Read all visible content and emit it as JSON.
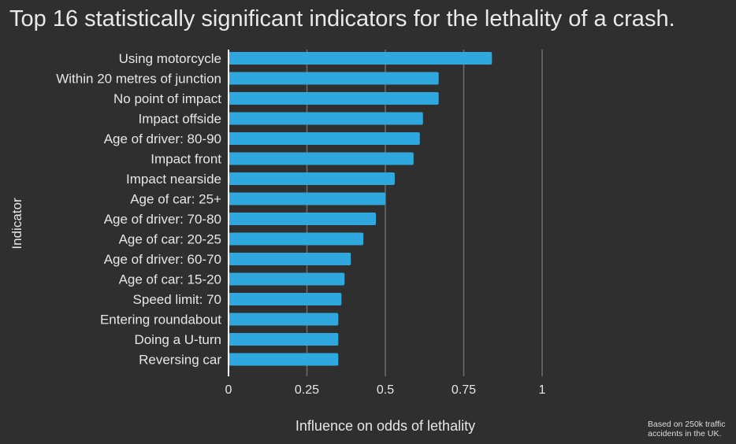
{
  "chart_data": {
    "type": "bar",
    "orientation": "horizontal",
    "title": "Top 16 statistically significant indicators for the lethality of a crash.",
    "xlabel": "Influence on odds of lethality",
    "ylabel": "Indicator",
    "xlim": [
      0,
      1
    ],
    "xticks": [
      0,
      0.25,
      0.5,
      0.75,
      1
    ],
    "xtick_labels": [
      "0",
      "0.25",
      "0.5",
      "0.75",
      "1"
    ],
    "grid": "vertical",
    "bar_color": "#2ea8de",
    "categories": [
      "Using motorcycle",
      "Within 20 metres of junction",
      "No point of impact",
      "Impact offside",
      "Age of driver: 80-90",
      "Impact front",
      "Impact nearside",
      "Age of car: 25+",
      "Age of driver: 70-80",
      "Age of car: 20-25",
      "Age of driver: 60-70",
      "Age of car: 15-20",
      "Speed limit: 70",
      "Entering roundabout",
      "Doing a U-turn",
      "Reversing car"
    ],
    "values": [
      0.84,
      0.67,
      0.67,
      0.62,
      0.61,
      0.59,
      0.53,
      0.5,
      0.47,
      0.43,
      0.39,
      0.37,
      0.36,
      0.35,
      0.35,
      0.35
    ],
    "annotation": "Based on 250k traffic accidents in the UK."
  }
}
